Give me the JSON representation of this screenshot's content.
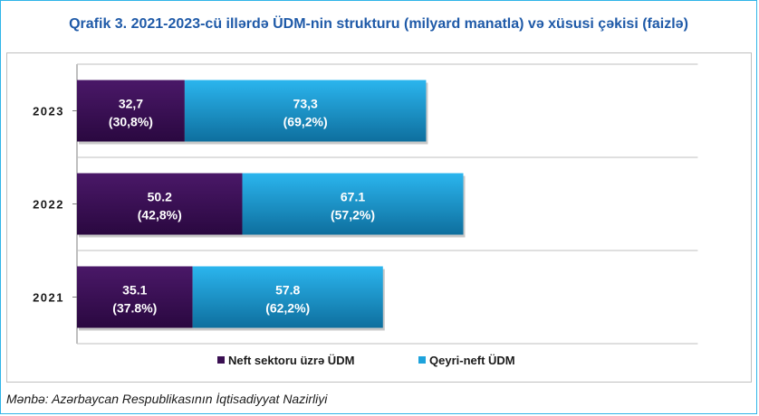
{
  "title": "Qrafik 3. 2021-2023-cü illərdə ÜDM-nin strukturu (milyard manatla) və xüsusi çəkisi (faizlə)",
  "source": "Mənbə: Azərbaycan Respublikasının İqtisadiyyat Nazirliyi",
  "colors": {
    "oil": "#3a0f52",
    "nonoil": "#1ea3dc",
    "frame": "#2fb4e8",
    "title": "#1f5aa8"
  },
  "chart_data": {
    "type": "bar",
    "orientation": "horizontal",
    "stacked": true,
    "categories": [
      "2023",
      "2022",
      "2021"
    ],
    "series": [
      {
        "name": "Neft sektoru üzrə ÜDM",
        "values": [
          32.7,
          50.2,
          35.1
        ],
        "labels": [
          "32,7",
          "50.2",
          "35.1"
        ],
        "share_labels": [
          "(30,8%)",
          "(42,8%)",
          "(37.8%)"
        ]
      },
      {
        "name": "Qeyri-neft ÜDM",
        "values": [
          73.3,
          67.1,
          57.8
        ],
        "labels": [
          "73,3",
          "67.1",
          "57.8"
        ],
        "share_labels": [
          "(69,2%)",
          "(57,2%)",
          "(62,2%)"
        ]
      }
    ],
    "xlim": [
      0,
      145
    ],
    "legend": "bottom",
    "grid": true
  }
}
